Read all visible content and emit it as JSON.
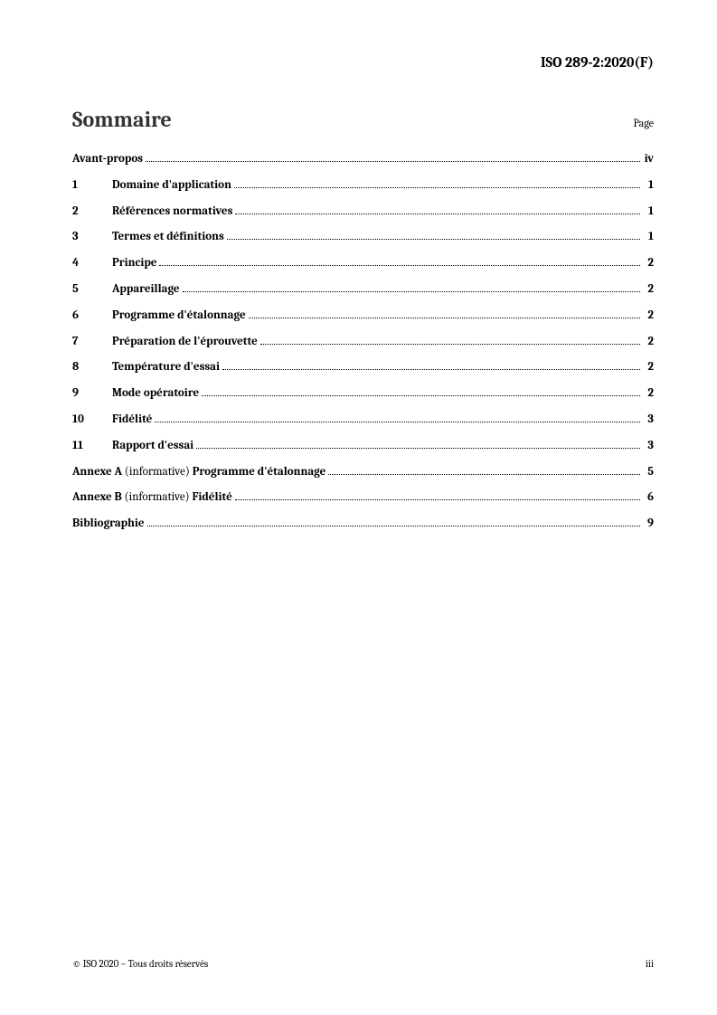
{
  "header": {
    "doc_ref": "ISO 289-2:2020(F)"
  },
  "title": "Sommaire",
  "page_label": "Page",
  "toc": [
    {
      "num": "",
      "label_bold": "Avant-propos",
      "label_norm": "",
      "label_bold2": "",
      "page": "iv",
      "indent": 0
    },
    {
      "num": "1",
      "label_bold": "Domaine d'application",
      "label_norm": "",
      "label_bold2": "",
      "page": "1",
      "indent": 44
    },
    {
      "num": "2",
      "label_bold": "Références normatives",
      "label_norm": "",
      "label_bold2": "",
      "page": "1",
      "indent": 44
    },
    {
      "num": "3",
      "label_bold": "Termes et définitions",
      "label_norm": "",
      "label_bold2": "",
      "page": "1",
      "indent": 44
    },
    {
      "num": "4",
      "label_bold": "Principe",
      "label_norm": "",
      "label_bold2": "",
      "page": "2",
      "indent": 44
    },
    {
      "num": "5",
      "label_bold": "Appareillage",
      "label_norm": "",
      "label_bold2": "",
      "page": "2",
      "indent": 44
    },
    {
      "num": "6",
      "label_bold": "Programme d'étalonnage",
      "label_norm": "",
      "label_bold2": "",
      "page": "2",
      "indent": 44
    },
    {
      "num": "7",
      "label_bold": "Préparation de l'éprouvette",
      "label_norm": "",
      "label_bold2": "",
      "page": "2",
      "indent": 44
    },
    {
      "num": "8",
      "label_bold": "Température d'essai",
      "label_norm": "",
      "label_bold2": "",
      "page": "2",
      "indent": 44
    },
    {
      "num": "9",
      "label_bold": "Mode opératoire",
      "label_norm": "",
      "label_bold2": "",
      "page": "2",
      "indent": 44
    },
    {
      "num": "10",
      "label_bold": "Fidélité",
      "label_norm": "",
      "label_bold2": "",
      "page": "3",
      "indent": 44
    },
    {
      "num": "11",
      "label_bold": "Rapport d'essai",
      "label_norm": "",
      "label_bold2": "",
      "page": "3",
      "indent": 44
    },
    {
      "num": "",
      "label_bold": "Annexe A ",
      "label_norm": "(informative) ",
      "label_bold2": "Programme d'étalonnage",
      "page": "5",
      "indent": 0
    },
    {
      "num": "",
      "label_bold": "Annexe B ",
      "label_norm": "(informative) ",
      "label_bold2": "Fidélité",
      "page": "6",
      "indent": 0
    },
    {
      "num": "",
      "label_bold": "Bibliographie",
      "label_norm": "",
      "label_bold2": "",
      "page": "9",
      "indent": 0
    }
  ],
  "footer": {
    "left": "© ISO 2020 – Tous droits réservés",
    "right": "iii"
  },
  "styles": {
    "text_color": "#000000",
    "bg_color": "#ffffff",
    "title_fontsize": 24,
    "body_fontsize": 13,
    "header_fontsize": 16,
    "footer_fontsize": 11,
    "leader_color": "#000000"
  }
}
